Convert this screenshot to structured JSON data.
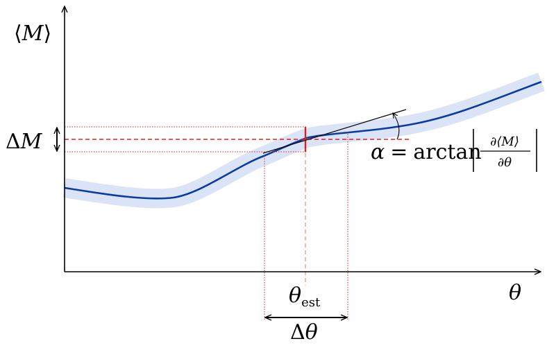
{
  "figure": {
    "y_axis_label": {
      "open": "⟨",
      "symbol": "M",
      "close": "⟩"
    },
    "x_axis_label": "θ",
    "delta_m_label": {
      "delta": "Δ",
      "symbol": "M"
    },
    "delta_theta_label": {
      "delta": "Δ",
      "symbol": "θ"
    },
    "theta_est_label": {
      "symbol": "θ",
      "subscript": "est"
    },
    "alpha_label": {
      "alpha": "α",
      "equals": "=",
      "func": "arctan",
      "frac_num": "∂⟨M⟩",
      "frac_den": "∂θ"
    }
  },
  "colors": {
    "curve": "#0a3aa3",
    "band": "#dbe3f6",
    "guides": "#e02020",
    "axes": "#000000"
  }
}
